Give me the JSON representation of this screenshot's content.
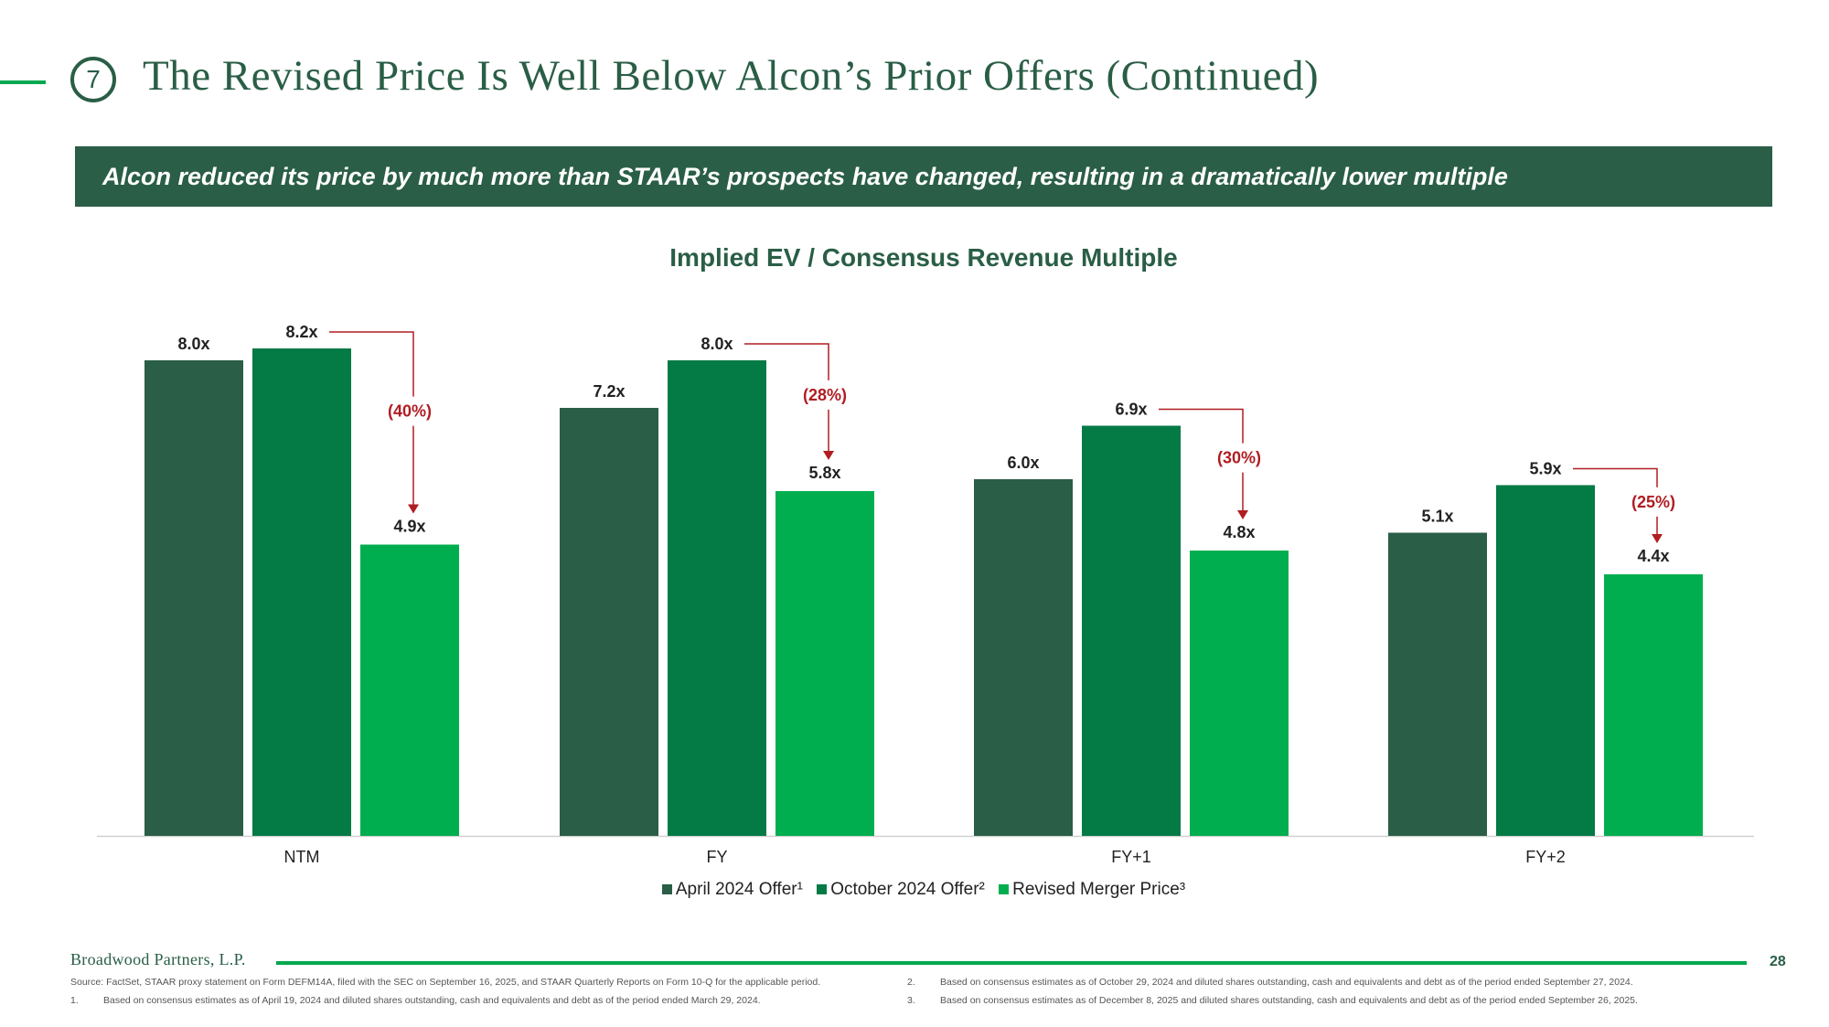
{
  "header": {
    "section_number": "7",
    "title": "The Revised Price Is Well Below Alcon’s Prior Offers (Continued)"
  },
  "banner": {
    "text": "Alcon reduced its price by much more than STAAR’s prospects have changed, resulting in a dramatically lower multiple"
  },
  "colors": {
    "dark_green": "#2a5e46",
    "mid_green": "#047a45",
    "bright_green": "#00ae4f",
    "red": "#b01d22",
    "accent_line": "#00a84f"
  },
  "chart_data": {
    "type": "bar",
    "title": "Implied EV / Consensus Revenue Multiple",
    "xlabel": "",
    "ylabel": "",
    "ylim": [
      0,
      8.2
    ],
    "categories": [
      "NTM",
      "FY",
      "FY+1",
      "FY+2"
    ],
    "series": [
      {
        "name": "April 2024 Offer¹",
        "values": [
          8.0,
          7.2,
          6.0,
          5.1
        ],
        "labels": [
          "8.0x",
          "7.2x",
          "6.0x",
          "5.1x"
        ]
      },
      {
        "name": "October 2024 Offer²",
        "values": [
          8.2,
          8.0,
          6.9,
          5.9
        ],
        "labels": [
          "8.2x",
          "8.0x",
          "6.9x",
          "5.9x"
        ]
      },
      {
        "name": "Revised Merger Price³",
        "values": [
          4.9,
          5.8,
          4.8,
          4.4
        ],
        "labels": [
          "4.9x",
          "5.8x",
          "4.8x",
          "4.4x"
        ]
      }
    ],
    "annotations": [
      "(40%)",
      "(28%)",
      "(30%)",
      "(25%)"
    ],
    "legend": "bottom",
    "grid": false
  },
  "footer": {
    "brand": "Broadwood Partners, L.P.",
    "page_number": "28",
    "source": "Source: FactSet, STAAR proxy statement on Form DEFM14A, filed with the SEC on September 16, 2025, and STAAR Quarterly Reports on Form 10-Q for the applicable period.",
    "notes": [
      {
        "num": "1.",
        "text": "Based on consensus estimates as of April 19, 2024 and diluted shares outstanding, cash and equivalents and debt as of the period ended March 29, 2024."
      },
      {
        "num": "2.",
        "text": "Based on consensus estimates as of October 29, 2024 and diluted shares outstanding, cash and equivalents and debt as of the period ended September 27, 2024."
      },
      {
        "num": "3.",
        "text": "Based on consensus estimates as of December 8, 2025 and diluted shares outstanding, cash and equivalents and debt as of the period ended September 26, 2025."
      }
    ]
  }
}
